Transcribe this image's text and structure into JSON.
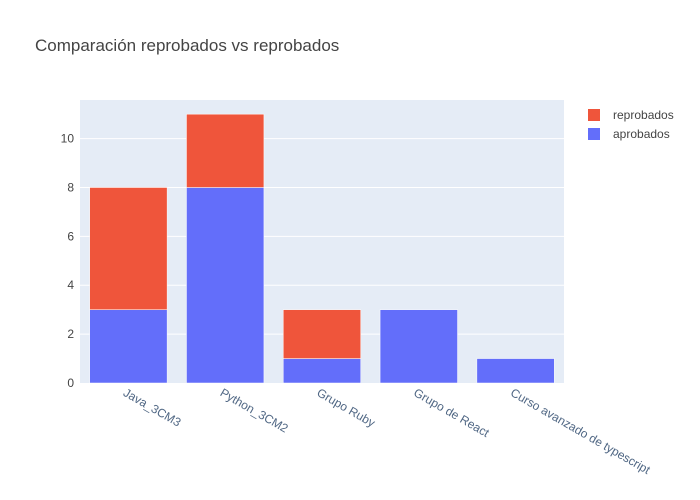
{
  "chart_data": {
    "type": "bar",
    "barmode": "stack",
    "title": "Comparación reprobados vs reprobados",
    "xlabel": "",
    "ylabel": "",
    "categories": [
      "Java_3CM3",
      "Python_3CM2",
      "Grupo Ruby",
      "Grupo de React",
      "Curso avanzado de typescript"
    ],
    "series": [
      {
        "name": "aprobados",
        "color": "#636efa",
        "values": [
          3,
          8,
          1,
          3,
          1
        ]
      },
      {
        "name": "reprobados",
        "color": "#ef553b",
        "values": [
          5,
          3,
          2,
          0,
          0
        ]
      }
    ],
    "ylim": [
      0,
      11.58
    ],
    "yticks": [
      0,
      2,
      4,
      6,
      8,
      10
    ],
    "grid": true,
    "legend_position": "top-right",
    "legend_order": [
      "reprobados",
      "aprobados"
    ],
    "plot_background": "#e5ecf6"
  }
}
